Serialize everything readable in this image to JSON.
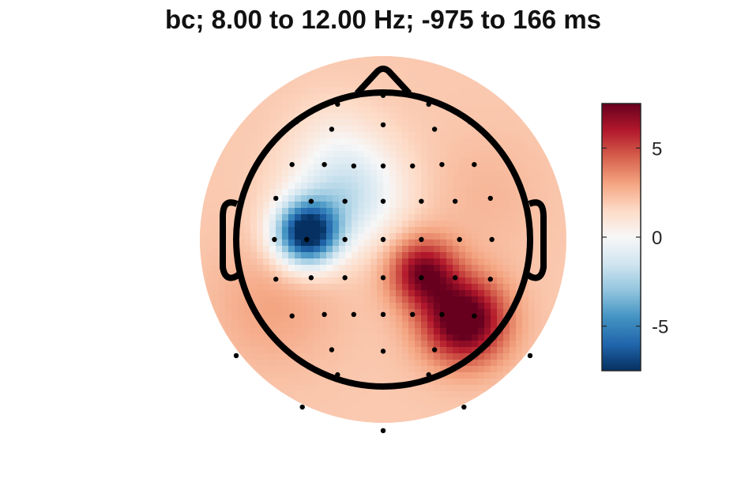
{
  "title": "bc; 8.00 to 12.00 Hz; -975 to 166 ms",
  "chart_data": {
    "type": "heatmap",
    "title": "bc; 8.00 to 12.00 Hz; -975 to 166 ms",
    "colormap": [
      "#053061",
      "#2166ac",
      "#4393c3",
      "#92c5de",
      "#d1e5f0",
      "#f7f7f7",
      "#fddbc7",
      "#f4a582",
      "#d6604d",
      "#b2182b",
      "#67001f"
    ],
    "clim": [
      -7.5,
      7.5
    ],
    "colorbar_ticks": [
      {
        "value": -5,
        "label": "-5"
      },
      {
        "value": 0,
        "label": "0"
      },
      {
        "value": 5,
        "label": "5"
      }
    ],
    "blobs": [
      {
        "value": -8.0,
        "u": -0.52,
        "v": 0.04,
        "sigma": 0.15
      },
      {
        "value": -1.8,
        "u": -0.25,
        "v": 0.32,
        "sigma": 0.26
      },
      {
        "value": 7.0,
        "u": 0.27,
        "v": -0.22,
        "sigma": 0.16
      },
      {
        "value": 8.5,
        "u": 0.55,
        "v": -0.55,
        "sigma": 0.2
      },
      {
        "value": 3.0,
        "u": -0.75,
        "v": -0.45,
        "sigma": 0.3
      },
      {
        "value": 1.5,
        "u": -0.35,
        "v": 0.75,
        "sigma": 0.2
      },
      {
        "value": 2.5,
        "u": 0.7,
        "v": 0.3,
        "sigma": 0.28
      }
    ],
    "baseline": 2.0,
    "electrodes": [
      [
        -0.31,
        0.92
      ],
      [
        0.0,
        0.98
      ],
      [
        0.31,
        0.92
      ],
      [
        -0.59,
        0.8
      ],
      [
        -0.35,
        0.75
      ],
      [
        0.0,
        0.78
      ],
      [
        0.35,
        0.75
      ],
      [
        0.59,
        0.8
      ],
      [
        -0.81,
        0.59
      ],
      [
        -0.62,
        0.51
      ],
      [
        -0.4,
        0.51
      ],
      [
        -0.2,
        0.5
      ],
      [
        0.0,
        0.5
      ],
      [
        0.2,
        0.5
      ],
      [
        0.4,
        0.51
      ],
      [
        0.62,
        0.51
      ],
      [
        -0.73,
        0.28
      ],
      [
        -0.49,
        0.26
      ],
      [
        -0.26,
        0.26
      ],
      [
        0.0,
        0.26
      ],
      [
        0.26,
        0.26
      ],
      [
        0.49,
        0.26
      ],
      [
        0.73,
        0.28
      ],
      [
        -0.74,
        0.0
      ],
      [
        -0.52,
        0.0
      ],
      [
        -0.26,
        0.0
      ],
      [
        0.0,
        0.0
      ],
      [
        0.26,
        0.0
      ],
      [
        0.52,
        0.0
      ],
      [
        0.74,
        0.0
      ],
      [
        -0.73,
        -0.27
      ],
      [
        -0.49,
        -0.26
      ],
      [
        -0.26,
        -0.26
      ],
      [
        0.0,
        -0.26
      ],
      [
        0.26,
        -0.26
      ],
      [
        0.49,
        -0.26
      ],
      [
        0.73,
        -0.27
      ],
      [
        -0.62,
        -0.52
      ],
      [
        -0.4,
        -0.51
      ],
      [
        -0.2,
        -0.51
      ],
      [
        0.0,
        -0.51
      ],
      [
        0.2,
        -0.51
      ],
      [
        0.4,
        -0.51
      ],
      [
        0.62,
        -0.52
      ],
      [
        -0.35,
        -0.75
      ],
      [
        0.0,
        -0.76
      ],
      [
        0.35,
        -0.75
      ],
      [
        -0.31,
        -0.92
      ],
      [
        0.0,
        -1.0
      ],
      [
        0.31,
        -0.92
      ],
      [
        -1.0,
        -0.79
      ],
      [
        1.0,
        -0.79
      ],
      [
        -0.55,
        -1.14
      ],
      [
        0.55,
        -1.14
      ],
      [
        0.0,
        -1.3
      ]
    ]
  }
}
